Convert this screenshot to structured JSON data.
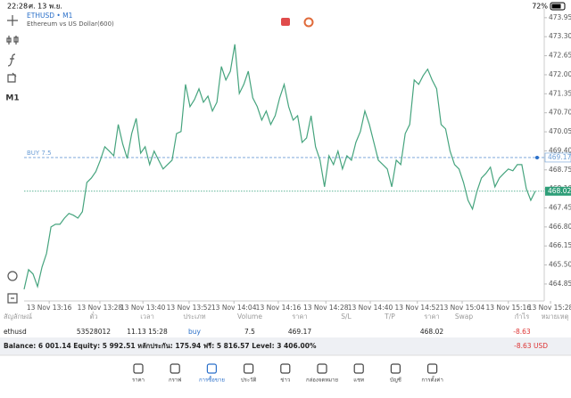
{
  "status_bar": {
    "time": "22:28",
    "date": "ศ. 13 พ.ย.",
    "battery": "72%"
  },
  "chart_data": {
    "type": "line",
    "symbol": "ETHUSD • M1",
    "description": "Ethereum vs US Dollar(600)",
    "timeframe": "M1",
    "color": "#46a47e",
    "values": [
      464.67,
      465.34,
      465.19,
      464.76,
      465.43,
      465.89,
      466.8,
      466.89,
      466.89,
      467.1,
      467.26,
      467.2,
      467.1,
      467.32,
      468.32,
      468.47,
      468.69,
      469.08,
      469.54,
      469.39,
      469.23,
      470.3,
      469.63,
      469.14,
      469.99,
      470.51,
      469.32,
      469.54,
      468.93,
      469.39,
      469.08,
      468.78,
      468.93,
      469.08,
      469.99,
      470.06,
      471.67,
      470.91,
      471.15,
      471.52,
      471.06,
      471.27,
      470.76,
      471.06,
      472.28,
      471.82,
      472.12,
      473.04,
      471.36,
      471.67,
      472.12,
      471.21,
      470.91,
      470.45,
      470.76,
      470.3,
      470.6,
      471.21,
      471.67,
      470.91,
      470.45,
      470.6,
      469.69,
      469.84,
      470.6,
      469.54,
      469.08,
      468.17,
      469.23,
      468.93,
      469.39,
      468.78,
      469.23,
      469.08,
      469.69,
      470.06,
      470.76,
      470.3,
      469.69,
      469.08,
      468.93,
      468.78,
      468.17,
      469.08,
      468.93,
      469.99,
      470.3,
      471.82,
      471.67,
      471.97,
      472.19,
      471.82,
      471.52,
      470.3,
      470.15,
      469.39,
      468.93,
      468.78,
      468.32,
      467.71,
      467.41,
      468.02,
      468.47,
      468.63,
      468.84,
      468.17,
      468.47,
      468.63,
      468.78,
      468.72,
      468.93,
      468.93,
      468.11,
      467.71,
      468.02
    ],
    "xlim": [
      0,
      116
    ],
    "xticks": [
      {
        "value": 5.6,
        "label": "13 Nov 13:16"
      },
      {
        "value": 16.9,
        "label": "13 Nov 13:28"
      },
      {
        "value": 26.5,
        "label": "13 Nov 13:40"
      },
      {
        "value": 36.8,
        "label": "13 Nov 13:52"
      },
      {
        "value": 46.8,
        "label": "13 Nov 14:04"
      },
      {
        "value": 56.7,
        "label": "13 Nov 14:16"
      },
      {
        "value": 67.3,
        "label": "13 Nov 14:28"
      },
      {
        "value": 77.2,
        "label": "13 Nov 14:40"
      },
      {
        "value": 87.7,
        "label": "13 Nov 14:52"
      },
      {
        "value": 97.7,
        "label": "13 Nov 15:04"
      },
      {
        "value": 108.0,
        "label": "13 Nov 15:16"
      },
      {
        "value": 117.4,
        "label": "13 Nov 15:28"
      }
    ],
    "ylim": [
      464.27,
      474.25
    ],
    "yticks": [
      {
        "value": 473.95,
        "label": "473.95"
      },
      {
        "value": 473.3,
        "label": "473.30"
      },
      {
        "value": 472.65,
        "label": "472.65"
      },
      {
        "value": 472,
        "label": "472.00"
      },
      {
        "value": 471.35,
        "label": "471.35"
      },
      {
        "value": 470.7,
        "label": "470.70"
      },
      {
        "value": 470.05,
        "label": "470.05"
      },
      {
        "value": 469.4,
        "label": "469.40"
      },
      {
        "value": 468.75,
        "label": "468.75"
      },
      {
        "value": 468.1,
        "label": "468.10"
      },
      {
        "value": 467.45,
        "label": "467.45"
      },
      {
        "value": 466.8,
        "label": "466.80"
      },
      {
        "value": 466.15,
        "label": "466.15"
      },
      {
        "value": 465.5,
        "label": "465.50"
      },
      {
        "value": 464.85,
        "label": "464.85"
      }
    ],
    "order_line": {
      "label": "BUY 7.5",
      "value": 469.17,
      "color": "#6c9ed6"
    },
    "current_price": {
      "value": 468.02,
      "color": "#2e9e78"
    }
  },
  "table": {
    "columns": [
      "สัญลักษณ์",
      "ตั๋ว",
      "เวลา",
      "ประเภท",
      "Volume",
      "ราคา",
      "S/L",
      "T/P",
      "ราคา",
      "Swap",
      "กำไร",
      "หมายเหตุ"
    ],
    "rows": [
      [
        "ethusd",
        "53528012",
        "11.13 15:28",
        "buy",
        "7.5",
        "469.17",
        null,
        null,
        "468.02",
        null,
        "-8.63",
        null
      ]
    ],
    "summary": "Balance: 6 001.14 Equity: 5 992.51 หลักประกัน: 175.94 ฟรี: 5 816.57 Level: 3 406.00%",
    "total": "-8.63  USD"
  },
  "nav": [
    "ราคา",
    "กราฟ",
    "การซื้อขาย",
    "ประวัติ",
    "ข่าว",
    "กล่องจดหมาย",
    "แชท",
    "บัญชี",
    "การตั้งค่า"
  ]
}
